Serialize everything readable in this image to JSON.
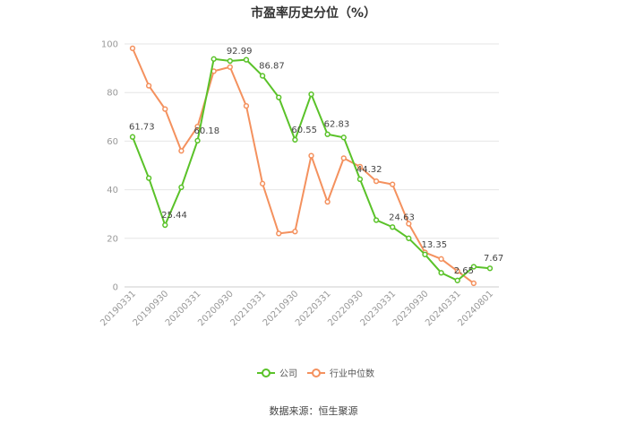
{
  "chart_data": {
    "type": "line",
    "title": "市盈率历史分位（%）",
    "xlabel": "",
    "ylabel": "",
    "ylim": [
      0,
      100
    ],
    "yticks": [
      0,
      20,
      40,
      60,
      80,
      100
    ],
    "grid": true,
    "legend_position": "bottom",
    "x_tick_labels": [
      "20190331",
      "20190930",
      "20200331",
      "20200930",
      "20210331",
      "20210930",
      "20220331",
      "20220930",
      "20230331",
      "20230930",
      "20240331",
      "20240801"
    ],
    "series": [
      {
        "name": "公司",
        "color": "#5ac229",
        "values": [
          61.73,
          44.8,
          25.44,
          41.0,
          60.18,
          93.8,
          92.99,
          93.5,
          86.87,
          78.0,
          60.55,
          79.3,
          62.83,
          61.5,
          44.32,
          27.5,
          24.63,
          20.0,
          13.35,
          5.8,
          2.65,
          8.3,
          7.67
        ],
        "labels": {
          "0": "61.73",
          "2": "25.44",
          "4": "60.18",
          "6": "92.99",
          "8": "86.87",
          "10": "60.55",
          "12": "62.83",
          "14": "44.32",
          "16": "24.63",
          "18": "13.35",
          "20": "2.65",
          "22": "7.67"
        }
      },
      {
        "name": "行业中位数",
        "color": "#f4915e",
        "values": [
          98.2,
          82.8,
          73.2,
          56.0,
          66.0,
          88.8,
          90.5,
          74.5,
          42.5,
          22.0,
          22.8,
          54.0,
          35.0,
          53.0,
          49.5,
          43.5,
          42.2,
          26.0,
          14.2,
          11.5,
          6.5,
          1.5,
          null
        ]
      }
    ],
    "source": "数据来源：恒生聚源"
  }
}
